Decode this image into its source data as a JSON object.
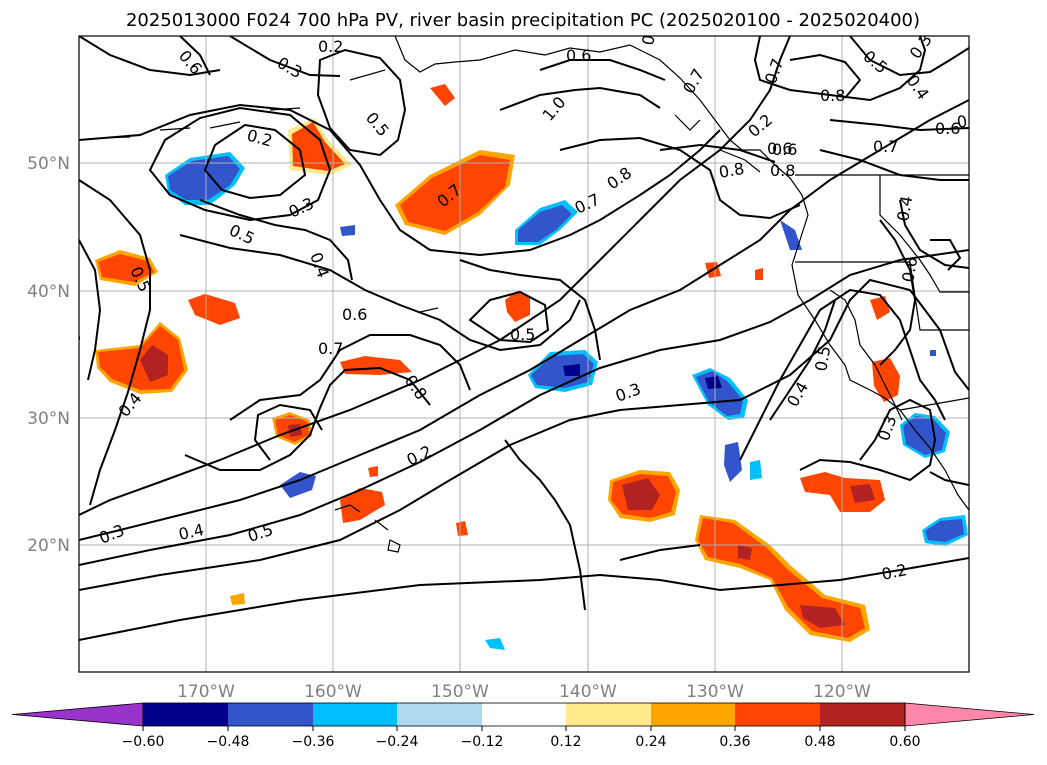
{
  "title": "2025013000 F024 700 hPa PV, river basin precipitation PC (2025020100 - 2025020400)",
  "lat_labels": [
    "50°N",
    "40°N",
    "30°N",
    "20°N"
  ],
  "lon_labels": [
    "170°W",
    "160°W",
    "150°W",
    "140°W",
    "130°W",
    "120°W"
  ],
  "colorbar": {
    "tick_labels": [
      "−0.60",
      "−0.48",
      "−0.36",
      "−0.24",
      "−0.12",
      "0.12",
      "0.24",
      "0.36",
      "0.48",
      "0.60"
    ],
    "colors": [
      "#9933cc",
      "#00008b",
      "#3355cc",
      "#00bfff",
      "#add8f0",
      "#ffffff",
      "#ffe98a",
      "#ffa500",
      "#ff4500",
      "#b22222",
      "#ff88aa"
    ]
  },
  "contour_labels": [
    "0.6",
    "0.3",
    "0.2",
    "0.5",
    "0.2",
    "0.3",
    "0.5",
    "0.4",
    "0.5",
    "0.3",
    "0.6",
    "0.7",
    "0.8",
    "0.4",
    "0.2",
    "0.4",
    "0.5",
    "0.3",
    "0.7",
    "0.5",
    "0.3",
    "1.0",
    "0.6",
    "0.8",
    "0.7",
    "0.6",
    "0.7",
    "0.6",
    "0.8",
    "0.2",
    "0.7",
    "0.8",
    "0.5",
    "0.3",
    "0.4",
    "0.6",
    "0.8",
    "0.6",
    "0.7",
    "0.6",
    "0.4",
    "0.6",
    "0.4",
    "0.5",
    "0.3",
    "0.2"
  ]
}
